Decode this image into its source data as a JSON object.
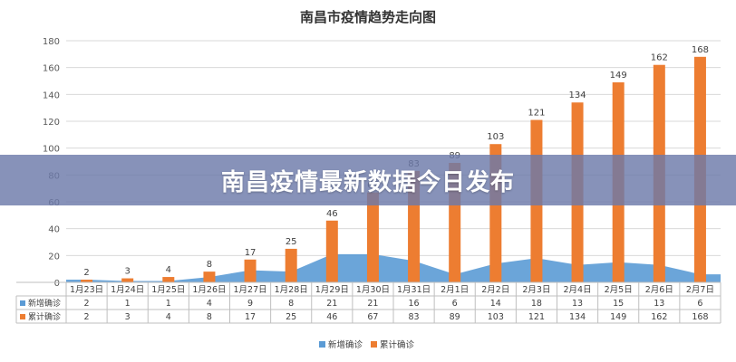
{
  "chart_data": {
    "type": "bar",
    "title": "南昌市疫情趋势走向图",
    "categories": [
      "1月23日",
      "1月24日",
      "1月25日",
      "1月26日",
      "1月27日",
      "1月28日",
      "1月29日",
      "1月30日",
      "1月31日",
      "2月1日",
      "2月2日",
      "2月3日",
      "2月4日",
      "2月5日",
      "2月6日",
      "2月7日"
    ],
    "series": [
      {
        "name": "新增确诊",
        "render": "area",
        "color": "#5b9bd5",
        "values": [
          2,
          1,
          1,
          4,
          9,
          8,
          21,
          21,
          16,
          6,
          14,
          18,
          13,
          15,
          13,
          6
        ]
      },
      {
        "name": "累计确诊",
        "render": "bar",
        "color": "#ed7d31",
        "values": [
          2,
          3,
          4,
          8,
          17,
          25,
          46,
          67,
          83,
          89,
          103,
          121,
          134,
          149,
          162,
          168
        ]
      }
    ],
    "ylim": [
      0,
      180
    ],
    "yticks": [
      0,
      20,
      40,
      60,
      80,
      100,
      120,
      140,
      160,
      180
    ],
    "grid": true,
    "data_table": true,
    "legend_position": "bottom"
  },
  "banner": {
    "text": "南昌疫情最新数据今日发布"
  }
}
